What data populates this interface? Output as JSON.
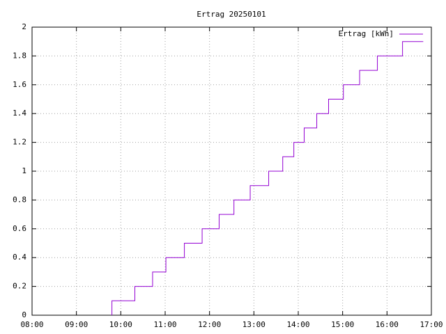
{
  "chart_data": {
    "type": "line",
    "step": true,
    "title": "Ertrag 20250101",
    "x": [
      "09:48",
      "09:48",
      "10:19",
      "10:43",
      "11:01",
      "11:26",
      "11:50",
      "12:13",
      "12:33",
      "12:55",
      "13:20",
      "13:39",
      "13:54",
      "14:08",
      "14:25",
      "14:41",
      "15:01",
      "15:23",
      "15:47",
      "16:21",
      "16:49"
    ],
    "series": [
      {
        "name": "Ertrag [kWh]",
        "color": "#9400d3",
        "values": [
          0,
          0.1,
          0.2,
          0.3,
          0.4,
          0.5,
          0.6,
          0.7,
          0.8,
          0.9,
          1.0,
          1.1,
          1.2,
          1.3,
          1.4,
          1.5,
          1.6,
          1.7,
          1.8,
          1.9,
          1.9
        ]
      }
    ],
    "xlim": [
      "08:00",
      "17:00"
    ],
    "xticks": [
      "08:00",
      "09:00",
      "10:00",
      "11:00",
      "12:00",
      "13:00",
      "14:00",
      "15:00",
      "16:00",
      "17:00"
    ],
    "ylim": [
      0,
      2
    ],
    "yticks": [
      0,
      0.2,
      0.4,
      0.6,
      0.8,
      1,
      1.2,
      1.4,
      1.6,
      1.8,
      2
    ],
    "grid": true,
    "legend": "top-right"
  }
}
